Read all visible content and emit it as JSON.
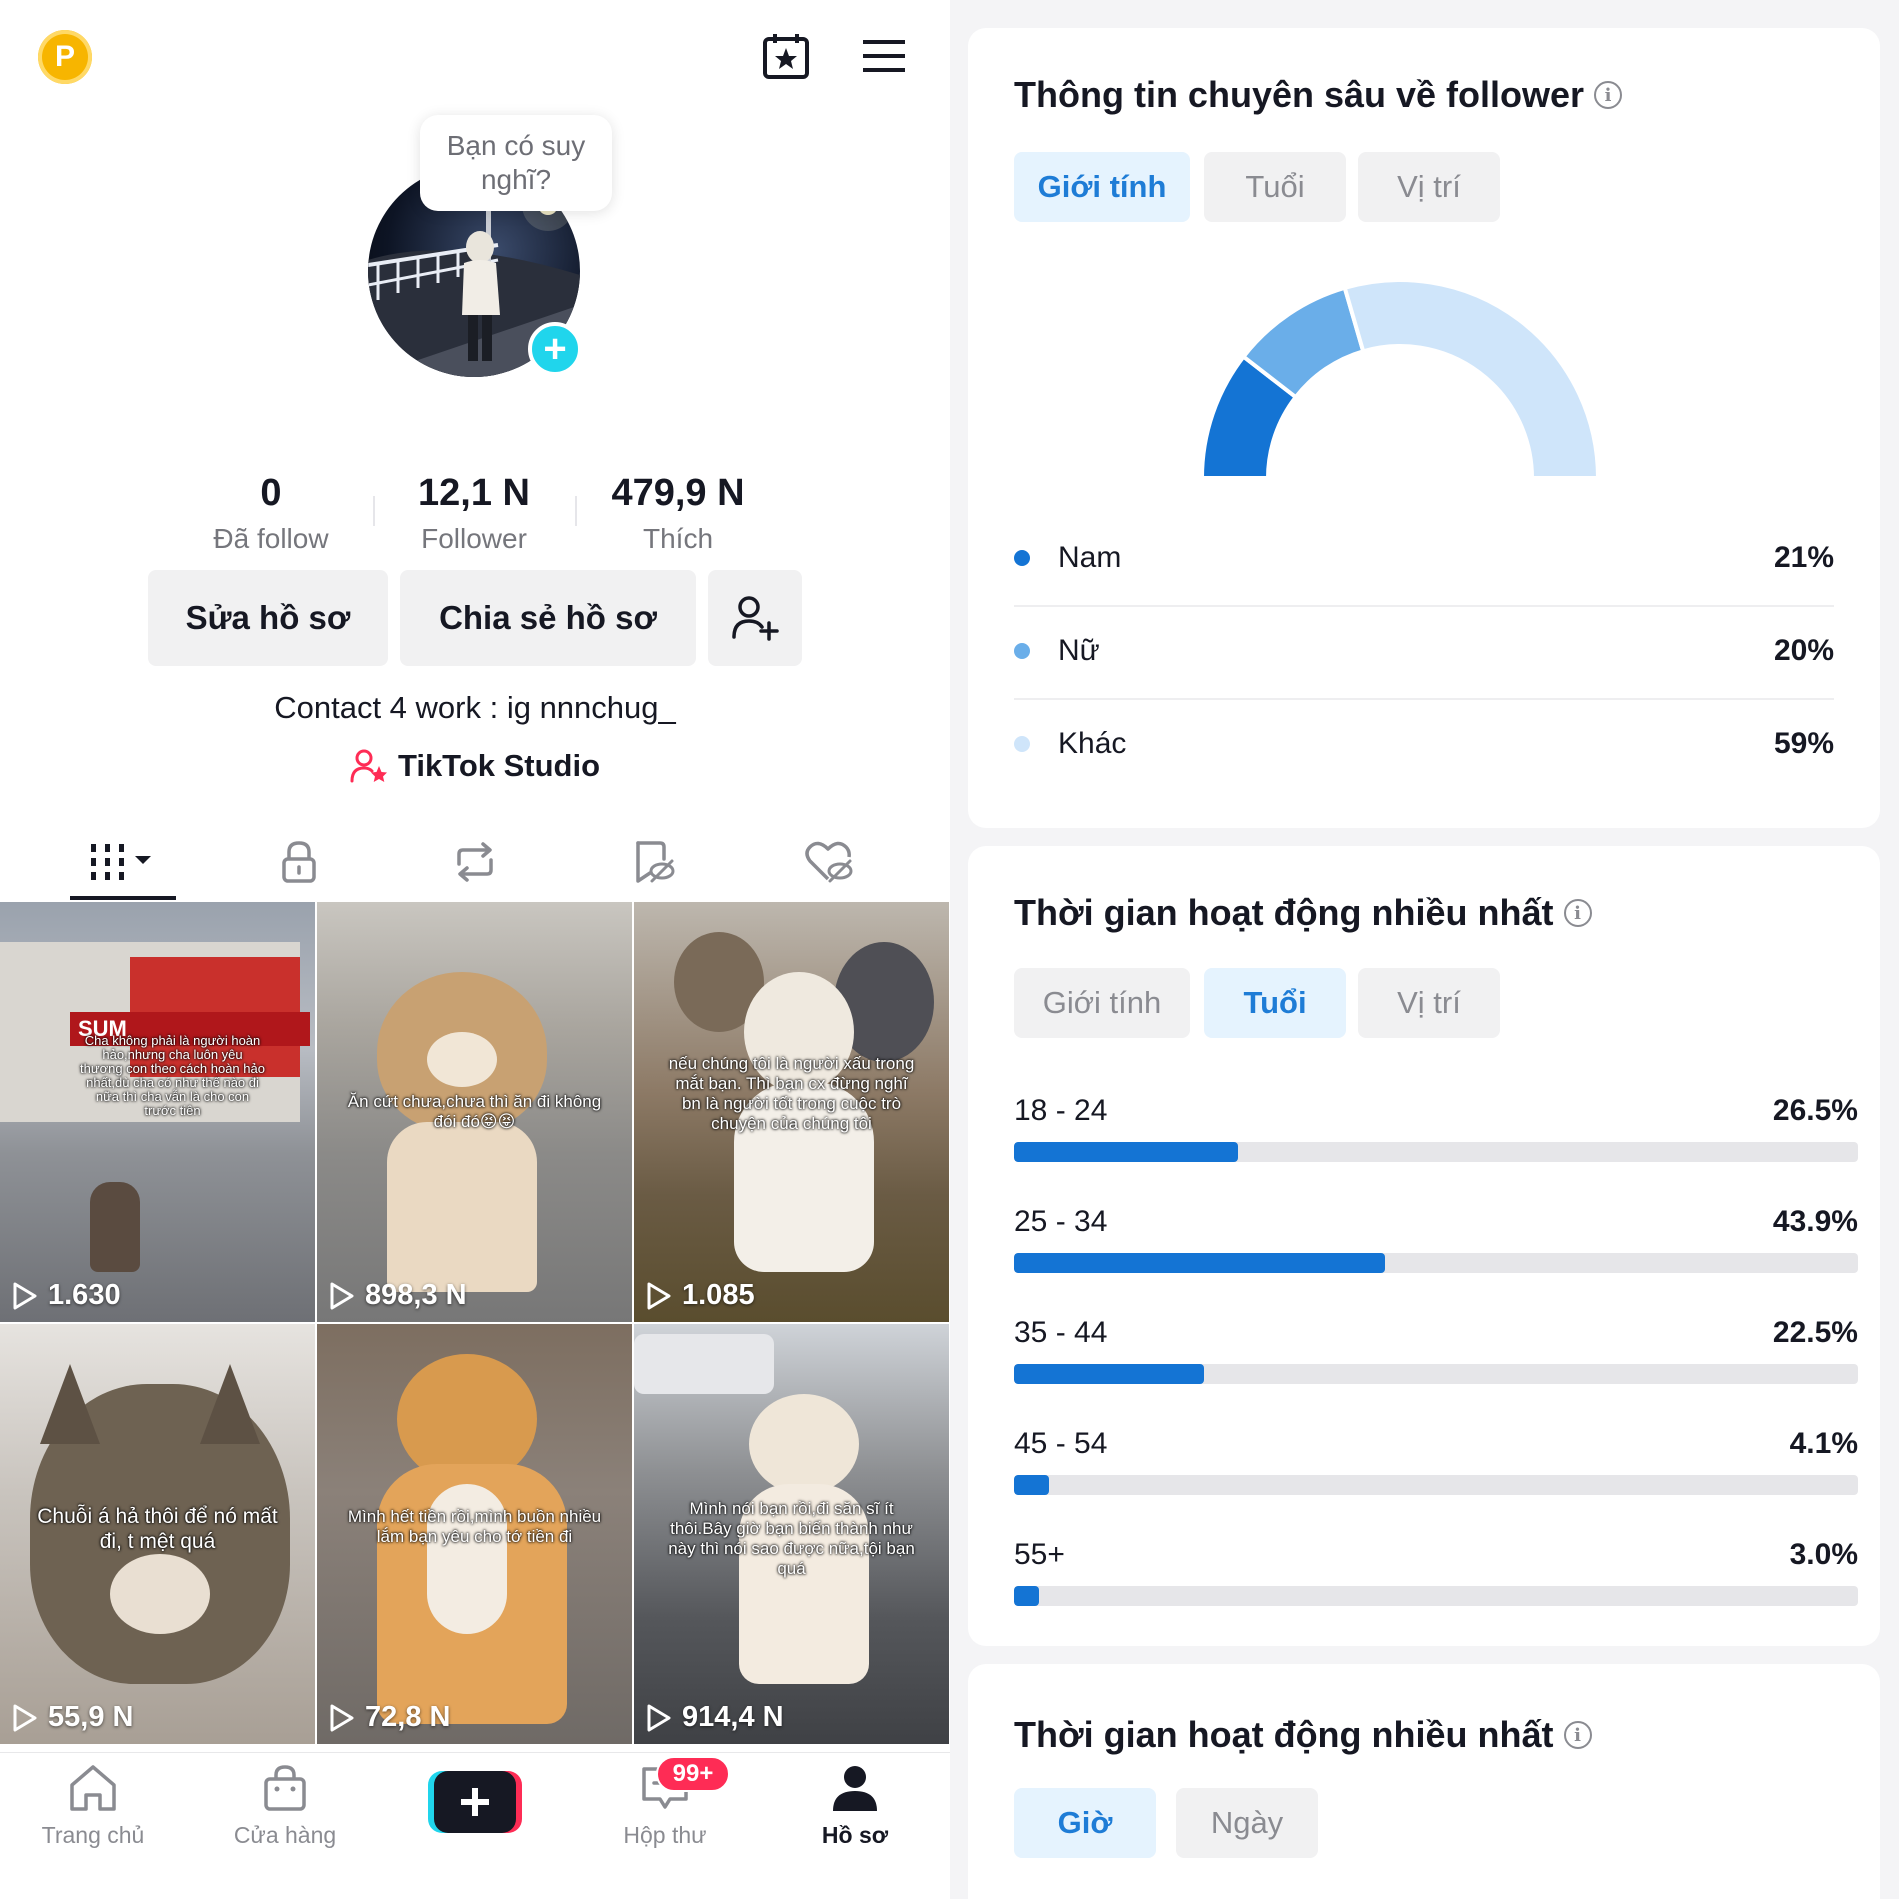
{
  "profile": {
    "avatar_bubble": "Bạn có suy nghĩ?",
    "stats": [
      {
        "value": "0",
        "label": "Đã follow"
      },
      {
        "value": "12,1 N",
        "label": "Follower"
      },
      {
        "value": "479,9 N",
        "label": "Thích"
      }
    ],
    "buttons": {
      "edit": "Sửa hồ sơ",
      "share": "Chia sẻ hồ sơ"
    },
    "bio": "Contact 4 work : ig nnnchug_",
    "studio_link": "TikTok Studio",
    "badge_letter": "P"
  },
  "videos": [
    {
      "views": "1.630",
      "caption": "Cha không phải là người hoàn hảo,nhưng cha luôn yêu thương con theo cách hoàn hảo nhất,dù cha có như thế nào đi nữa thì cha vẫn là cho con trước tiên",
      "sign": "SUM"
    },
    {
      "views": "898,3 N",
      "caption": "Ăn cứt chưa,chưa thì ăn đi không đói đó😝😝"
    },
    {
      "views": "1.085",
      "caption": "nếu chúng tôi là người xấu trong mắt bạn. Thì bạn cx đừng nghĩ bn là người tốt trong cuộc trò chuyện của chúng tôi"
    },
    {
      "views": "55,9 N",
      "caption": "Chuỗi á hả thôi để nó mất đi, t mệt quá"
    },
    {
      "views": "72,8 N",
      "caption": "Mình hết tiền rồi,mình buồn nhiều lắm bạn yêu cho tớ tiền đi"
    },
    {
      "views": "914,4 N",
      "caption": "Mình nói bạn rồi,đi săn sĩ ít thôi.Bây giờ bạn biến thành như này thì nói sao được nữa,tội bạn quá"
    }
  ],
  "nav": {
    "items": [
      "Trang chủ",
      "Cửa hàng",
      "",
      "Hộp thư",
      "Hồ sơ"
    ],
    "inbox_badge": "99+"
  },
  "insights": {
    "title": "Thông tin chuyên sâu về follower",
    "tabs": [
      "Giới tính",
      "Tuổi",
      "Vị trí"
    ],
    "selected_tab": "Giới tính",
    "gender": [
      {
        "label": "Nam",
        "pct": "21%",
        "value": 21,
        "color": "#1474d4"
      },
      {
        "label": "Nữ",
        "pct": "20%",
        "value": 20,
        "color": "#6aaee9"
      },
      {
        "label": "Khác",
        "pct": "59%",
        "value": 59,
        "color": "#cfe5fa"
      }
    ]
  },
  "activity_age": {
    "title": "Thời gian hoạt động nhiều nhất",
    "tabs": [
      "Giới tính",
      "Tuổi",
      "Vị trí"
    ],
    "selected_tab": "Tuổi",
    "rows": [
      {
        "label": "18 - 24",
        "pct": "26.5%",
        "value": 26.5
      },
      {
        "label": "25 - 34",
        "pct": "43.9%",
        "value": 43.9
      },
      {
        "label": "35 - 44",
        "pct": "22.5%",
        "value": 22.5
      },
      {
        "label": "45 - 54",
        "pct": "4.1%",
        "value": 4.1
      },
      {
        "label": "55+",
        "pct": "3.0%",
        "value": 3.0
      }
    ]
  },
  "activity_time": {
    "title": "Thời gian hoạt động nhiều nhất",
    "tabs": [
      "Giờ",
      "Ngày"
    ],
    "selected_tab": "Giờ"
  },
  "colors": {
    "accent_blue": "#1e7cd6",
    "chip_selected_bg": "#e5f3fe",
    "tiktok_red": "#fe2c55",
    "tiktok_cyan": "#20d5ec"
  }
}
